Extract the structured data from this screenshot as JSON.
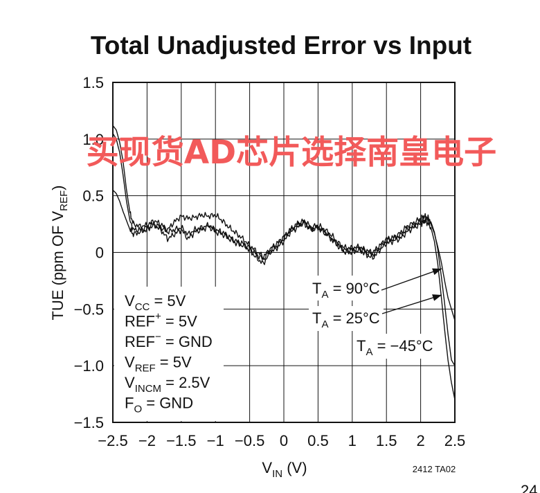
{
  "chart_data": {
    "type": "line",
    "title": "Total Unadjusted Error vs Input",
    "xlabel": "V",
    "xlabel_sub": "IN",
    "xlabel_unit": "(V)",
    "ylabel": "TUE (ppm OF V",
    "ylabel_sub": "REF",
    "ylabel_close": ")",
    "xlim": [
      -2.5,
      2.5
    ],
    "ylim": [
      -1.5,
      1.5
    ],
    "x_ticks": [
      -2.5,
      -2,
      -1.5,
      -1,
      -0.5,
      0,
      0.5,
      1,
      1.5,
      2,
      2.5
    ],
    "x_tick_labels": [
      "−2.5",
      "−2",
      "−1.5",
      "−1",
      "−0.5",
      "0",
      "0.5",
      "1",
      "1.5",
      "2",
      "2.5"
    ],
    "y_ticks": [
      1.5,
      1.0,
      0.5,
      0,
      -0.5,
      -1.0,
      -1.5
    ],
    "y_tick_labels": [
      "1.5",
      "1.0",
      "0.5",
      "0",
      "−0.5",
      "−1.0",
      "−1.5"
    ],
    "grid": true,
    "series": [
      {
        "name": "T_A = 90°C",
        "x": [
          -2.5,
          -2.45,
          -2.4,
          -2.35,
          -2.3,
          -2.25,
          -2.2,
          -2.1,
          -2.0,
          -1.9,
          -1.8,
          -1.7,
          -1.6,
          -1.5,
          -1.4,
          -1.3,
          -1.2,
          -1.1,
          -1.0,
          -0.9,
          -0.8,
          -0.7,
          -0.6,
          -0.5,
          -0.4,
          -0.3,
          -0.2,
          -0.1,
          0.0,
          0.1,
          0.2,
          0.3,
          0.4,
          0.5,
          0.6,
          0.7,
          0.8,
          0.9,
          1.0,
          1.1,
          1.2,
          1.3,
          1.4,
          1.5,
          1.6,
          1.7,
          1.8,
          1.9,
          2.0,
          2.05,
          2.1,
          2.15,
          2.2,
          2.25,
          2.3,
          2.35,
          2.4,
          2.45,
          2.5
        ],
        "y": [
          1.12,
          1.08,
          0.97,
          0.8,
          0.55,
          0.35,
          0.25,
          0.23,
          0.24,
          0.28,
          0.25,
          0.2,
          0.27,
          0.32,
          0.3,
          0.31,
          0.33,
          0.32,
          0.33,
          0.28,
          0.22,
          0.17,
          0.12,
          0.06,
          0.01,
          -0.04,
          0.03,
          0.08,
          0.14,
          0.2,
          0.25,
          0.28,
          0.22,
          0.24,
          0.2,
          0.15,
          0.08,
          0.04,
          0.04,
          0.05,
          0.02,
          0.0,
          0.06,
          0.12,
          0.13,
          0.17,
          0.23,
          0.26,
          0.3,
          0.32,
          0.31,
          0.27,
          0.18,
          0.03,
          -0.2,
          -0.45,
          -0.72,
          -0.95,
          -1.0
        ]
      },
      {
        "name": "T_A = 25°C",
        "x": [
          -2.5,
          -2.45,
          -2.4,
          -2.35,
          -2.3,
          -2.25,
          -2.2,
          -2.1,
          -2.0,
          -1.9,
          -1.8,
          -1.7,
          -1.6,
          -1.5,
          -1.4,
          -1.3,
          -1.2,
          -1.1,
          -1.0,
          -0.9,
          -0.8,
          -0.7,
          -0.6,
          -0.5,
          -0.4,
          -0.3,
          -0.2,
          -0.1,
          0.0,
          0.1,
          0.2,
          0.3,
          0.4,
          0.5,
          0.6,
          0.7,
          0.8,
          0.9,
          1.0,
          1.1,
          1.2,
          1.3,
          1.4,
          1.5,
          1.6,
          1.7,
          1.8,
          1.9,
          2.0,
          2.05,
          2.1,
          2.15,
          2.2,
          2.25,
          2.3,
          2.35,
          2.4,
          2.45,
          2.5
        ],
        "y": [
          1.05,
          1.0,
          0.88,
          0.68,
          0.45,
          0.28,
          0.2,
          0.2,
          0.22,
          0.25,
          0.22,
          0.18,
          0.2,
          0.22,
          0.16,
          0.2,
          0.22,
          0.24,
          0.2,
          0.18,
          0.14,
          0.1,
          0.08,
          0.04,
          -0.02,
          -0.06,
          0.02,
          0.06,
          0.12,
          0.2,
          0.25,
          0.25,
          0.2,
          0.22,
          0.17,
          0.12,
          0.06,
          0.02,
          0.02,
          0.04,
          0.0,
          -0.02,
          0.04,
          0.1,
          0.12,
          0.15,
          0.2,
          0.24,
          0.27,
          0.28,
          0.26,
          0.22,
          0.1,
          -0.1,
          -0.38,
          -0.68,
          -0.95,
          -1.15,
          -1.3
        ]
      },
      {
        "name": "T_A = −45°C",
        "x": [
          -2.5,
          -2.45,
          -2.4,
          -2.35,
          -2.3,
          -2.25,
          -2.2,
          -2.1,
          -2.0,
          -1.9,
          -1.8,
          -1.7,
          -1.6,
          -1.5,
          -1.4,
          -1.3,
          -1.2,
          -1.1,
          -1.0,
          -0.9,
          -0.8,
          -0.7,
          -0.6,
          -0.5,
          -0.4,
          -0.3,
          -0.2,
          -0.1,
          0.0,
          0.1,
          0.2,
          0.3,
          0.4,
          0.5,
          0.6,
          0.7,
          0.8,
          0.9,
          1.0,
          1.1,
          1.2,
          1.3,
          1.4,
          1.5,
          1.6,
          1.7,
          1.8,
          1.9,
          2.0,
          2.05,
          2.1,
          2.15,
          2.2,
          2.25,
          2.3,
          2.35,
          2.4,
          2.45,
          2.5
        ],
        "y": [
          0.55,
          0.52,
          0.45,
          0.36,
          0.28,
          0.2,
          0.16,
          0.18,
          0.2,
          0.24,
          0.2,
          0.12,
          0.16,
          0.2,
          0.12,
          0.18,
          0.2,
          0.23,
          0.18,
          0.16,
          0.12,
          0.08,
          0.06,
          0.02,
          -0.05,
          -0.1,
          0.0,
          0.04,
          0.1,
          0.18,
          0.22,
          0.27,
          0.2,
          0.22,
          0.18,
          0.12,
          0.05,
          0.0,
          0.0,
          0.02,
          -0.02,
          -0.05,
          0.02,
          0.08,
          0.1,
          0.12,
          0.18,
          0.22,
          0.25,
          0.27,
          0.3,
          0.25,
          0.17,
          0.05,
          -0.08,
          -0.25,
          -0.4,
          -0.5,
          -0.6
        ]
      }
    ],
    "series_labels": [
      {
        "main": "T",
        "sub": "A",
        "rest": " = 90°C"
      },
      {
        "main": "T",
        "sub": "A",
        "rest": " = 25°C"
      },
      {
        "main": "T",
        "sub": "A",
        "rest": " = −45°C"
      }
    ],
    "conditions": [
      {
        "main": "V",
        "sub": "CC",
        "sup": "",
        "rest": " = 5V"
      },
      {
        "main": "REF",
        "sub": "",
        "sup": "+",
        "rest": " = 5V"
      },
      {
        "main": "REF",
        "sub": "",
        "sup": "−",
        "rest": " = GND"
      },
      {
        "main": "V",
        "sub": "REF",
        "sup": "",
        "rest": " = 5V"
      },
      {
        "main": "V",
        "sub": "INCM",
        "sup": "",
        "rest": " = 2.5V"
      },
      {
        "main": "F",
        "sub": "O",
        "sup": "",
        "rest": " = GND"
      }
    ],
    "figure_code": "2412 TA02",
    "watermark": "买现货AD芯片选择南皇电子",
    "page_number_fragment": "24"
  },
  "colors": {
    "line": "#111111",
    "grid": "#111111",
    "watermark": "#f25a5a"
  }
}
